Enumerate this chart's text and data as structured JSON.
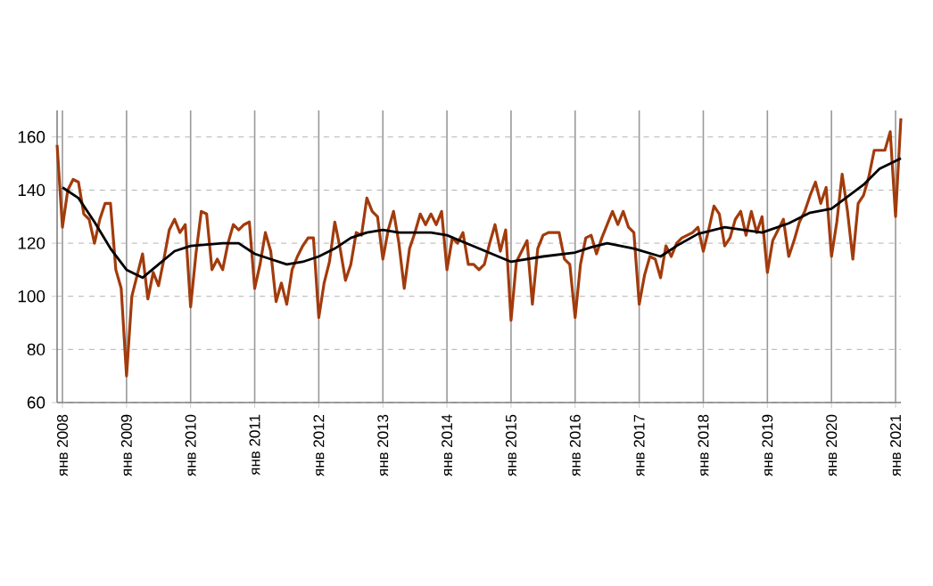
{
  "chart_data": {
    "type": "line",
    "grid": true,
    "marker": "none",
    "line_style": "solid",
    "xlim": [
      "2007-12",
      "2021-02"
    ],
    "ylim": [
      60,
      170
    ],
    "yticks": [
      60,
      80,
      100,
      120,
      140,
      160
    ],
    "xticks": [
      {
        "value": "2008-01",
        "label": "янв 2008"
      },
      {
        "value": "2009-01",
        "label": "янв 2009"
      },
      {
        "value": "2010-01",
        "label": "янв 2010"
      },
      {
        "value": "2011-01",
        "label": "янв 2011"
      },
      {
        "value": "2012-01",
        "label": "янв 2012"
      },
      {
        "value": "2013-01",
        "label": "янв 2013"
      },
      {
        "value": "2014-01",
        "label": "янв 2014"
      },
      {
        "value": "2015-01",
        "label": "янв 2015"
      },
      {
        "value": "2016-01",
        "label": "янв 2016"
      },
      {
        "value": "2017-01",
        "label": "янв 2017"
      },
      {
        "value": "2018-01",
        "label": "янв 2018"
      },
      {
        "value": "2019-01",
        "label": "янв 2019"
      },
      {
        "value": "2020-01",
        "label": "янв 2020"
      },
      {
        "value": "2021-01",
        "label": "янв 2021"
      }
    ],
    "series": [
      {
        "color": "#a23b0c",
        "x": [
          "2007-12",
          "2008-01",
          "2008-02",
          "2008-03",
          "2008-04",
          "2008-05",
          "2008-06",
          "2008-07",
          "2008-08",
          "2008-09",
          "2008-10",
          "2008-11",
          "2008-12",
          "2009-01",
          "2009-02",
          "2009-03",
          "2009-04",
          "2009-05",
          "2009-06",
          "2009-07",
          "2009-08",
          "2009-09",
          "2009-10",
          "2009-11",
          "2009-12",
          "2010-01",
          "2010-02",
          "2010-03",
          "2010-04",
          "2010-05",
          "2010-06",
          "2010-07",
          "2010-08",
          "2010-09",
          "2010-10",
          "2010-11",
          "2010-12",
          "2011-01",
          "2011-02",
          "2011-03",
          "2011-04",
          "2011-05",
          "2011-06",
          "2011-07",
          "2011-08",
          "2011-09",
          "2011-10",
          "2011-11",
          "2011-12",
          "2012-01",
          "2012-02",
          "2012-03",
          "2012-04",
          "2012-05",
          "2012-06",
          "2012-07",
          "2012-08",
          "2012-09",
          "2012-10",
          "2012-11",
          "2012-12",
          "2013-01",
          "2013-02",
          "2013-03",
          "2013-04",
          "2013-05",
          "2013-06",
          "2013-07",
          "2013-08",
          "2013-09",
          "2013-10",
          "2013-11",
          "2013-12",
          "2014-01",
          "2014-02",
          "2014-03",
          "2014-04",
          "2014-05",
          "2014-06",
          "2014-07",
          "2014-08",
          "2014-09",
          "2014-10",
          "2014-11",
          "2014-12",
          "2015-01",
          "2015-02",
          "2015-03",
          "2015-04",
          "2015-05",
          "2015-06",
          "2015-07",
          "2015-08",
          "2015-09",
          "2015-10",
          "2015-11",
          "2015-12",
          "2016-01",
          "2016-02",
          "2016-03",
          "2016-04",
          "2016-05",
          "2016-06",
          "2016-07",
          "2016-08",
          "2016-09",
          "2016-10",
          "2016-11",
          "2016-12",
          "2017-01",
          "2017-02",
          "2017-03",
          "2017-04",
          "2017-05",
          "2017-06",
          "2017-07",
          "2017-08",
          "2017-09",
          "2017-10",
          "2017-11",
          "2017-12",
          "2018-01",
          "2018-02",
          "2018-03",
          "2018-04",
          "2018-05",
          "2018-06",
          "2018-07",
          "2018-08",
          "2018-09",
          "2018-10",
          "2018-11",
          "2018-12",
          "2019-01",
          "2019-02",
          "2019-03",
          "2019-04",
          "2019-05",
          "2019-06",
          "2019-07",
          "2019-08",
          "2019-09",
          "2019-10",
          "2019-11",
          "2019-12",
          "2020-01",
          "2020-02",
          "2020-03",
          "2020-04",
          "2020-05",
          "2020-06",
          "2020-07",
          "2020-08",
          "2020-09",
          "2020-10",
          "2020-11",
          "2020-12",
          "2021-01",
          "2021-02"
        ],
        "values": [
          157,
          126,
          140,
          144,
          143,
          131,
          129,
          120,
          129,
          135,
          135,
          110,
          103,
          70,
          100,
          108,
          116,
          99,
          109,
          104,
          114,
          125,
          129,
          124,
          127,
          96,
          116,
          132,
          131,
          110,
          114,
          110,
          120,
          127,
          125,
          127,
          128,
          103,
          112,
          124,
          117,
          98,
          105,
          97,
          110,
          115,
          119,
          122,
          122,
          92,
          105,
          113,
          128,
          118,
          106,
          112,
          124,
          123,
          137,
          132,
          130,
          114,
          125,
          132,
          120,
          103,
          118,
          124,
          131,
          127,
          131,
          127,
          132,
          110,
          122,
          120,
          124,
          112,
          112,
          110,
          112,
          120,
          127,
          117,
          125,
          91,
          113,
          117,
          121,
          97,
          118,
          123,
          124,
          124,
          124,
          114,
          112,
          92,
          112,
          122,
          123,
          116,
          122,
          127,
          132,
          127,
          132,
          126,
          124,
          97,
          108,
          115,
          114,
          107,
          119,
          115,
          120,
          122,
          123,
          124,
          126,
          117,
          125,
          134,
          131,
          119,
          122,
          129,
          132,
          123,
          132,
          124,
          130,
          109,
          121,
          125,
          129,
          115,
          121,
          128,
          132,
          138,
          143,
          135,
          141,
          115,
          128,
          146,
          132,
          114,
          135,
          138,
          145,
          155,
          155,
          155,
          162,
          130,
          167
        ]
      },
      {
        "color": "#000000",
        "x": [
          "2008-01",
          "2008-04",
          "2008-07",
          "2008-10",
          "2009-01",
          "2009-04",
          "2009-07",
          "2009-10",
          "2010-01",
          "2010-07",
          "2010-10",
          "2011-01",
          "2011-04",
          "2011-07",
          "2011-10",
          "2012-01",
          "2012-04",
          "2012-07",
          "2012-10",
          "2013-01",
          "2013-04",
          "2013-07",
          "2013-10",
          "2014-01",
          "2014-07",
          "2015-01",
          "2015-07",
          "2016-01",
          "2016-04",
          "2016-07",
          "2016-12",
          "2017-05",
          "2017-08",
          "2017-12",
          "2018-05",
          "2018-12",
          "2019-05",
          "2019-09",
          "2020-01",
          "2020-04",
          "2020-07",
          "2020-10",
          "2021-01",
          "2021-02"
        ],
        "values": [
          141,
          137,
          128,
          118,
          110,
          107,
          112,
          117,
          119,
          120,
          120,
          116,
          114,
          112,
          113,
          115,
          118,
          122,
          124,
          125,
          124,
          124,
          124,
          123,
          118,
          113,
          115,
          116.5,
          118.5,
          120,
          118,
          115,
          119,
          123.5,
          126,
          124,
          127.5,
          131.5,
          133,
          137.5,
          142,
          148,
          151,
          152
        ]
      }
    ]
  }
}
